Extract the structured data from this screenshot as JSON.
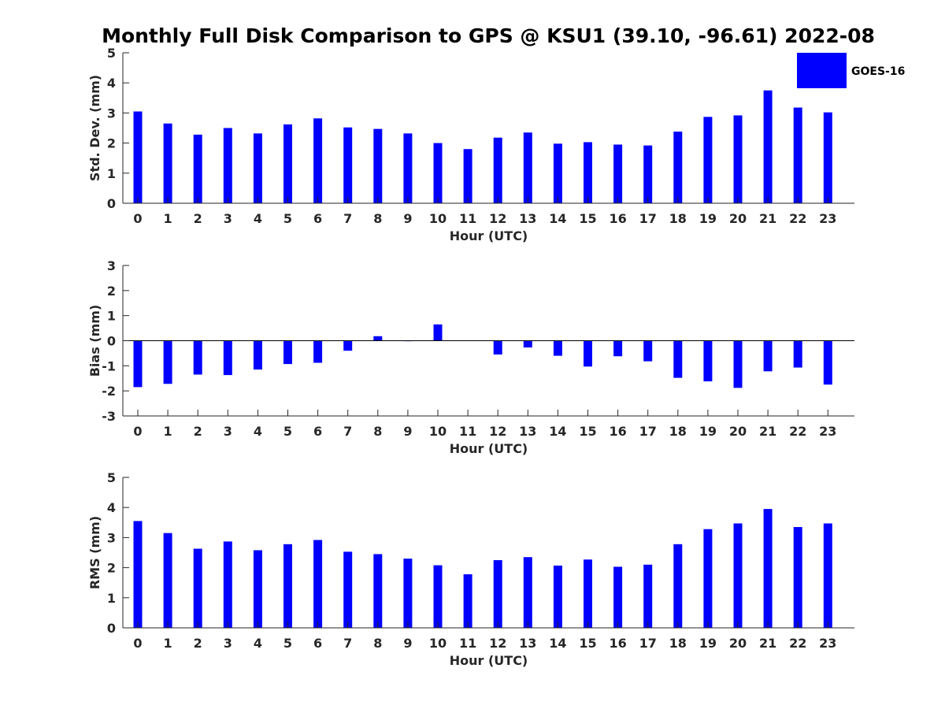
{
  "title": "Monthly Full Disk Comparison to GPS @ KSU1 (39.10, -96.61) 2022-08",
  "legend": {
    "label": "GOES-16",
    "color": "#0000ff",
    "placement": "top-right"
  },
  "chart_data": [
    {
      "type": "bar",
      "categories": [
        "0",
        "1",
        "2",
        "3",
        "4",
        "5",
        "6",
        "7",
        "8",
        "9",
        "10",
        "11",
        "12",
        "13",
        "14",
        "15",
        "16",
        "17",
        "18",
        "19",
        "20",
        "21",
        "22",
        "23"
      ],
      "series": [
        {
          "name": "GOES-16",
          "color": "#0000ff",
          "values": [
            3.05,
            2.65,
            2.28,
            2.5,
            2.32,
            2.62,
            2.82,
            2.52,
            2.47,
            2.32,
            2.0,
            1.8,
            2.18,
            2.35,
            1.98,
            2.03,
            1.95,
            1.92,
            2.38,
            2.87,
            2.92,
            3.75,
            3.18,
            3.02
          ]
        }
      ],
      "xlabel": "Hour (UTC)",
      "ylabel": "Std. Dev. (mm)",
      "ylim": [
        0,
        5
      ],
      "yticks": [
        "0",
        "1",
        "2",
        "3",
        "4",
        "5"
      ]
    },
    {
      "type": "bar",
      "categories": [
        "0",
        "1",
        "2",
        "3",
        "4",
        "5",
        "6",
        "7",
        "8",
        "9",
        "10",
        "11",
        "12",
        "13",
        "14",
        "15",
        "16",
        "17",
        "18",
        "19",
        "20",
        "21",
        "22",
        "23"
      ],
      "series": [
        {
          "name": "GOES-16",
          "color": "#0000ff",
          "values": [
            -1.85,
            -1.72,
            -1.35,
            -1.37,
            -1.15,
            -0.93,
            -0.88,
            -0.4,
            0.18,
            -0.02,
            0.65,
            0.0,
            -0.55,
            -0.27,
            -0.6,
            -1.03,
            -0.62,
            -0.82,
            -1.48,
            -1.62,
            -1.88,
            -1.22,
            -1.07,
            -1.75
          ]
        }
      ],
      "xlabel": "Hour (UTC)",
      "ylabel": "Bias (mm)",
      "ylim": [
        -3,
        3
      ],
      "yticks": [
        "-3",
        "-2",
        "-1",
        "0",
        "1",
        "2",
        "3"
      ]
    },
    {
      "type": "bar",
      "categories": [
        "0",
        "1",
        "2",
        "3",
        "4",
        "5",
        "6",
        "7",
        "8",
        "9",
        "10",
        "11",
        "12",
        "13",
        "14",
        "15",
        "16",
        "17",
        "18",
        "19",
        "20",
        "21",
        "22",
        "23"
      ],
      "series": [
        {
          "name": "GOES-16",
          "color": "#0000ff",
          "values": [
            3.55,
            3.15,
            2.63,
            2.87,
            2.58,
            2.78,
            2.92,
            2.53,
            2.45,
            2.3,
            2.08,
            1.78,
            2.25,
            2.35,
            2.07,
            2.27,
            2.03,
            2.1,
            2.78,
            3.28,
            3.47,
            3.95,
            3.35,
            3.47
          ]
        }
      ],
      "xlabel": "Hour (UTC)",
      "ylabel": "RMS (mm)",
      "ylim": [
        0,
        5
      ],
      "yticks": [
        "0",
        "1",
        "2",
        "3",
        "4",
        "5"
      ]
    }
  ]
}
